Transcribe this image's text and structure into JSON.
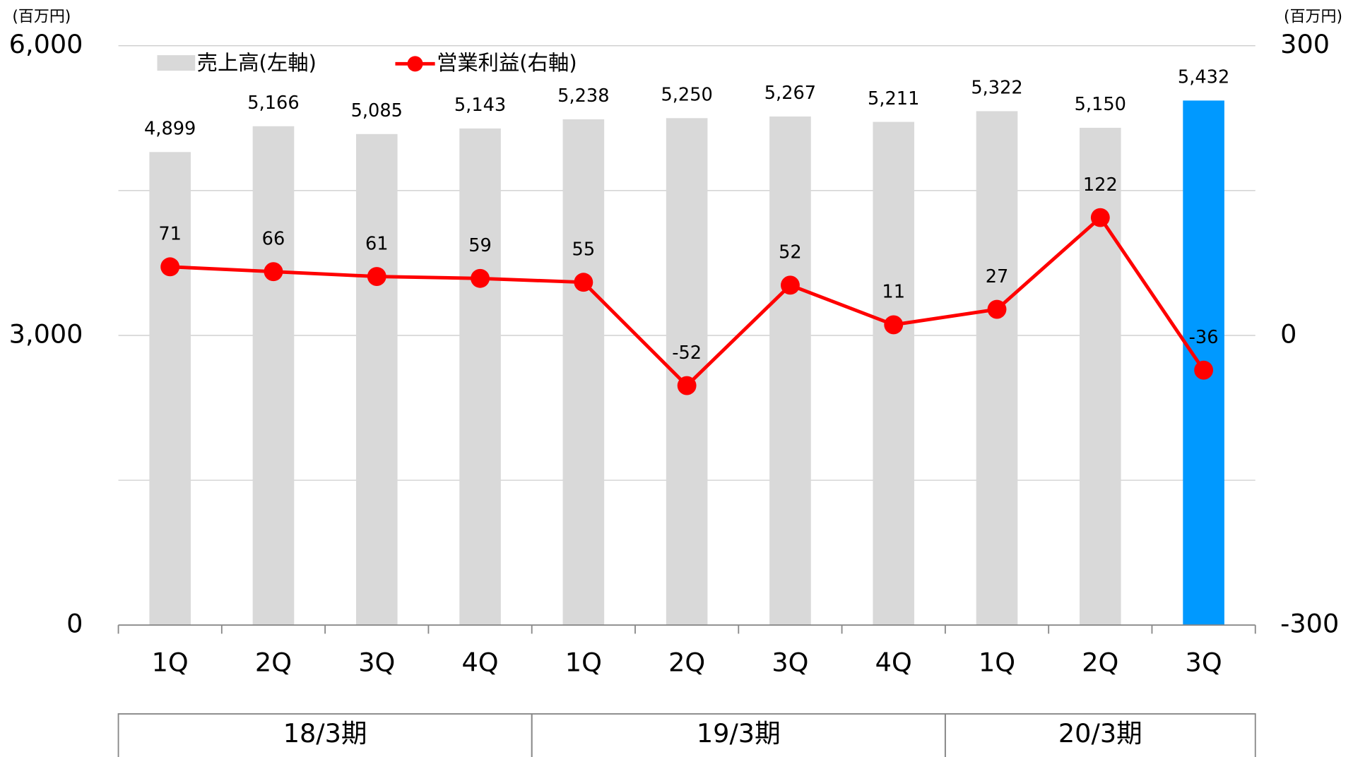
{
  "chart_data": {
    "type": "bar_line",
    "legend": "top-left",
    "categories": [
      "1Q",
      "2Q",
      "3Q",
      "4Q",
      "1Q",
      "2Q",
      "3Q",
      "4Q",
      "1Q",
      "2Q",
      "3Q"
    ],
    "groups": [
      {
        "label": "18/3期",
        "count": 4
      },
      {
        "label": "19/3期",
        "count": 4
      },
      {
        "label": "20/3期",
        "count": 3
      }
    ],
    "y_unit": "(百万円)",
    "y2_unit": "(百万円)",
    "ylim": [
      0,
      6000
    ],
    "yticks": [
      0,
      {
        "value": 3000,
        "label": "3,000"
      },
      {
        "value": 6000,
        "label": "6,000"
      }
    ],
    "ygrid": [
      1500,
      3000,
      4500,
      6000
    ],
    "y2lim": [
      -300,
      300
    ],
    "y2ticks": [
      -300,
      0,
      300
    ],
    "series": [
      {
        "name": "売上高(左軸)",
        "type": "bar",
        "color": "#d9d9d9",
        "colors": [
          "#d9d9d9",
          "#d9d9d9",
          "#d9d9d9",
          "#d9d9d9",
          "#d9d9d9",
          "#d9d9d9",
          "#d9d9d9",
          "#d9d9d9",
          "#d9d9d9",
          "#d9d9d9",
          "#0099ff"
        ],
        "values": [
          4899,
          5166,
          5085,
          5143,
          5238,
          5250,
          5267,
          5211,
          5322,
          5150,
          5432
        ],
        "value_labels": [
          "4,899",
          "5,166",
          "5,085",
          "5,143",
          "5,238",
          "5,250",
          "5,267",
          "5,211",
          "5,322",
          "5,150",
          "5,432"
        ]
      },
      {
        "name": "営業利益(右軸)",
        "type": "line",
        "axis": "y2",
        "color": "#ff0000",
        "values": [
          71,
          66,
          61,
          59,
          55,
          -52,
          52,
          11,
          27,
          122,
          -36
        ]
      }
    ]
  }
}
